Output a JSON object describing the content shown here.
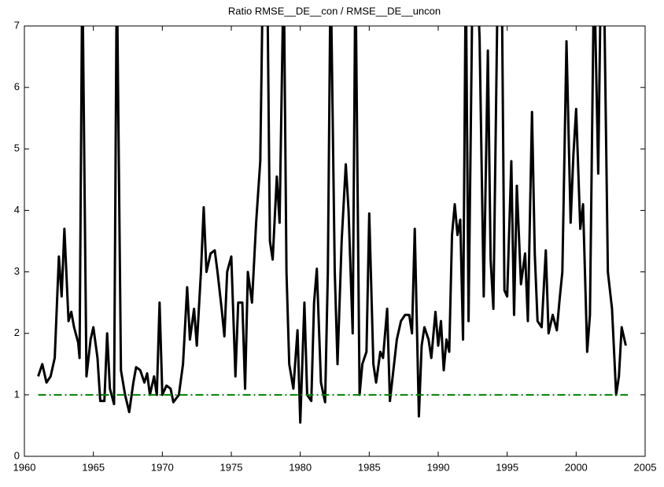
{
  "chart_data": {
    "type": "line",
    "title": "Ratio RMSE__DE__con / RMSE__DE__uncon",
    "xlim": [
      1960,
      2005
    ],
    "xticks": [
      1960,
      1965,
      1970,
      1975,
      1980,
      1985,
      1990,
      1995,
      2000,
      2005
    ],
    "ylim": [
      0,
      7
    ],
    "yticks": [
      0,
      1,
      2,
      3,
      4,
      5,
      6,
      7
    ],
    "grid": false,
    "series": [
      {
        "color": "#000000",
        "dash": "solid",
        "x": [
          1961.0,
          1961.3,
          1961.6,
          1961.9,
          1962.2,
          1962.5,
          1962.7,
          1962.9,
          1963.2,
          1963.4,
          1963.6,
          1963.9,
          1964.0,
          1964.2,
          1964.5,
          1964.8,
          1965.0,
          1965.3,
          1965.5,
          1965.8,
          1966.0,
          1966.2,
          1966.5,
          1966.7,
          1967.0,
          1967.3,
          1967.6,
          1967.9,
          1968.1,
          1968.4,
          1968.7,
          1968.9,
          1969.1,
          1969.4,
          1969.6,
          1969.8,
          1970.0,
          1970.3,
          1970.6,
          1970.8,
          1971.2,
          1971.5,
          1971.8,
          1972.0,
          1972.3,
          1972.5,
          1972.8,
          1973.0,
          1973.2,
          1973.5,
          1973.8,
          1974.0,
          1974.3,
          1974.5,
          1974.7,
          1975.0,
          1975.3,
          1975.5,
          1975.8,
          1976.0,
          1976.2,
          1976.5,
          1976.8,
          1977.1,
          1977.3,
          1977.6,
          1977.8,
          1978.0,
          1978.3,
          1978.5,
          1978.8,
          1979.0,
          1979.2,
          1979.5,
          1979.8,
          1980.0,
          1980.3,
          1980.5,
          1980.8,
          1981.0,
          1981.2,
          1981.5,
          1981.8,
          1982.0,
          1982.2,
          1982.5,
          1982.7,
          1983.0,
          1983.3,
          1983.5,
          1983.8,
          1984.0,
          1984.3,
          1984.5,
          1984.8,
          1985.0,
          1985.3,
          1985.5,
          1985.8,
          1986.0,
          1986.3,
          1986.5,
          1986.8,
          1987.0,
          1987.3,
          1987.6,
          1987.9,
          1988.1,
          1988.3,
          1988.6,
          1988.8,
          1989.0,
          1989.3,
          1989.5,
          1989.8,
          1990.0,
          1990.2,
          1990.4,
          1990.6,
          1990.8,
          1991.0,
          1991.2,
          1991.4,
          1991.6,
          1991.8,
          1992.0,
          1992.2,
          1992.5,
          1992.8,
          1993.0,
          1993.3,
          1993.6,
          1993.8,
          1994.0,
          1994.3,
          1994.6,
          1994.8,
          1995.0,
          1995.3,
          1995.5,
          1995.7,
          1996.0,
          1996.3,
          1996.5,
          1996.8,
          1997.0,
          1997.2,
          1997.5,
          1997.8,
          1998.0,
          1998.3,
          1998.6,
          1998.8,
          1999.0,
          1999.3,
          1999.6,
          1999.8,
          2000.0,
          2000.3,
          2000.5,
          2000.8,
          2001.0,
          2001.3,
          2001.6,
          2001.8,
          2002.0,
          2002.3,
          2002.6,
          2002.9,
          2003.1,
          2003.3,
          2003.6
        ],
        "values": [
          1.3,
          1.5,
          1.2,
          1.3,
          1.6,
          3.25,
          2.6,
          3.7,
          2.2,
          2.35,
          2.1,
          1.85,
          1.6,
          8,
          1.3,
          1.9,
          2.1,
          1.6,
          0.9,
          0.9,
          2.0,
          1.1,
          0.85,
          8,
          1.4,
          1.0,
          0.72,
          1.2,
          1.45,
          1.4,
          1.2,
          1.35,
          1.0,
          1.3,
          1.0,
          2.5,
          1.0,
          1.15,
          1.1,
          0.88,
          1.0,
          1.5,
          2.75,
          1.9,
          2.4,
          1.8,
          3.0,
          4.05,
          3.0,
          3.3,
          3.35,
          3.0,
          2.4,
          1.95,
          3.0,
          3.25,
          1.3,
          2.5,
          2.5,
          1.1,
          3.0,
          2.5,
          3.8,
          4.8,
          8,
          8,
          3.5,
          3.2,
          4.55,
          3.8,
          8,
          3.0,
          1.5,
          1.1,
          2.05,
          0.55,
          2.5,
          1.0,
          0.9,
          2.5,
          3.05,
          1.2,
          0.88,
          3.0,
          8,
          3.0,
          1.5,
          3.5,
          4.75,
          4.0,
          2.0,
          8,
          1.0,
          1.5,
          1.7,
          3.95,
          1.5,
          1.2,
          1.7,
          1.6,
          2.4,
          0.9,
          1.5,
          1.9,
          2.2,
          2.3,
          2.3,
          2.0,
          3.7,
          0.65,
          1.8,
          2.1,
          1.9,
          1.6,
          2.35,
          1.8,
          2.2,
          1.4,
          1.9,
          1.7,
          3.6,
          4.1,
          3.6,
          3.85,
          1.9,
          8,
          2.2,
          8,
          8,
          6.8,
          2.6,
          6.6,
          3.2,
          2.4,
          7.5,
          8,
          2.7,
          2.6,
          4.8,
          2.3,
          4.4,
          2.8,
          3.3,
          2.2,
          5.6,
          3.3,
          2.2,
          2.1,
          3.35,
          2.0,
          2.3,
          2.05,
          2.55,
          3.0,
          6.75,
          3.8,
          4.9,
          5.65,
          3.7,
          4.1,
          1.7,
          2.3,
          8,
          4.6,
          8,
          8,
          3.0,
          2.4,
          1.0,
          1.3,
          2.1,
          1.8
        ]
      },
      {
        "color": "#008000",
        "dash": "dashdot",
        "x": [
          1961.0,
          2003.75
        ],
        "values": [
          1,
          1
        ]
      }
    ]
  }
}
